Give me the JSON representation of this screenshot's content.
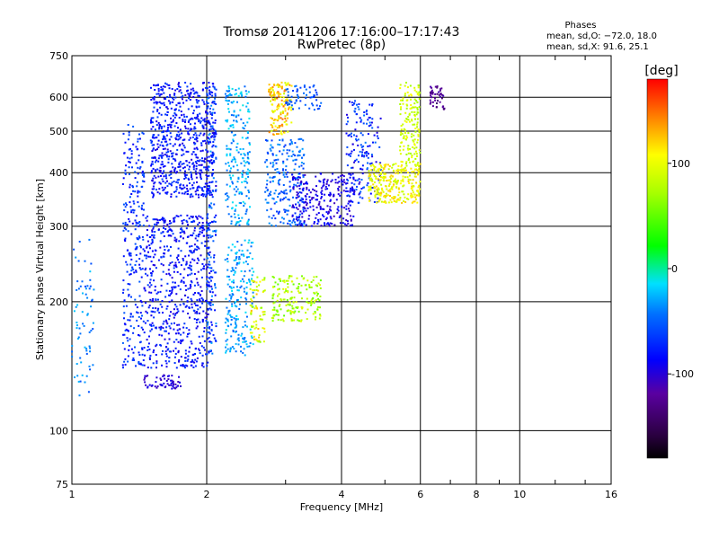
{
  "chart_data": {
    "type": "scatter",
    "title": "Tromsø 20141206 17:16:00–17:17:43",
    "subtitle": "RwPretec (8p)",
    "xlabel": "Frequency [MHz]",
    "ylabel": "Stationary phase Virtual Height [km]",
    "xscale": "log",
    "yscale": "log",
    "xlim": [
      1,
      16
    ],
    "ylim": [
      75,
      750
    ],
    "x_ticks": [
      1,
      2,
      4,
      6,
      8,
      10,
      16
    ],
    "y_ticks": [
      75,
      100,
      200,
      300,
      400,
      500,
      600,
      750
    ],
    "grid": true,
    "stats": {
      "heading": "Phases",
      "line1": "mean, sd,O: −72.0, 18.0",
      "line2": "mean, sd,X:  91.6, 25.1"
    },
    "colorbar": {
      "label": "[deg]",
      "range": [
        -180,
        180
      ],
      "ticks": [
        100,
        0,
        -100
      ],
      "colormap": "rainbow (black → purple → blue → cyan → green → yellow → orange → red)"
    },
    "clusters": [
      {
        "fmin": 1.0,
        "fmax": 1.12,
        "hmin": 120,
        "hmax": 280,
        "phase": [
          -60,
          -20
        ],
        "n": 70
      },
      {
        "fmin": 1.3,
        "fmax": 1.45,
        "hmin": 140,
        "hmax": 520,
        "phase": [
          -90,
          -50
        ],
        "n": 260
      },
      {
        "fmin": 1.45,
        "fmax": 2.05,
        "hmin": 140,
        "hmax": 320,
        "phase": [
          -100,
          -60
        ],
        "n": 650
      },
      {
        "fmin": 1.45,
        "fmax": 1.75,
        "hmin": 125,
        "hmax": 135,
        "phase": [
          -110,
          -90
        ],
        "n": 60
      },
      {
        "fmin": 1.5,
        "fmax": 2.1,
        "hmin": 350,
        "hmax": 650,
        "phase": [
          -100,
          -60
        ],
        "n": 700
      },
      {
        "fmin": 2.0,
        "fmax": 2.1,
        "hmin": 150,
        "hmax": 650,
        "phase": [
          -90,
          -30
        ],
        "n": 160
      },
      {
        "fmin": 2.2,
        "fmax": 2.5,
        "hmin": 300,
        "hmax": 640,
        "phase": [
          -50,
          -10
        ],
        "n": 220
      },
      {
        "fmin": 2.2,
        "fmax": 2.55,
        "hmin": 150,
        "hmax": 280,
        "phase": [
          -50,
          -10
        ],
        "n": 200
      },
      {
        "fmin": 2.5,
        "fmax": 2.7,
        "hmin": 160,
        "hmax": 230,
        "phase": [
          60,
          130
        ],
        "n": 70
      },
      {
        "fmin": 2.75,
        "fmax": 3.1,
        "hmin": 490,
        "hmax": 650,
        "phase": [
          80,
          150
        ],
        "n": 150
      },
      {
        "fmin": 2.7,
        "fmax": 3.3,
        "hmin": 300,
        "hmax": 480,
        "phase": [
          -70,
          -30
        ],
        "n": 220
      },
      {
        "fmin": 2.8,
        "fmax": 3.6,
        "hmin": 180,
        "hmax": 230,
        "phase": [
          50,
          100
        ],
        "n": 180
      },
      {
        "fmin": 3.0,
        "fmax": 3.6,
        "hmin": 560,
        "hmax": 640,
        "phase": [
          -70,
          -40
        ],
        "n": 60
      },
      {
        "fmin": 3.1,
        "fmax": 4.3,
        "hmin": 300,
        "hmax": 400,
        "phase": [
          -110,
          -80
        ],
        "n": 260
      },
      {
        "fmin": 4.1,
        "fmax": 4.9,
        "hmin": 340,
        "hmax": 590,
        "phase": [
          -100,
          -40
        ],
        "n": 170
      },
      {
        "fmin": 4.6,
        "fmax": 6.0,
        "hmin": 340,
        "hmax": 420,
        "phase": [
          80,
          125
        ],
        "n": 280
      },
      {
        "fmin": 5.4,
        "fmax": 6.0,
        "hmin": 420,
        "hmax": 650,
        "phase": [
          70,
          110
        ],
        "n": 150
      },
      {
        "fmin": 6.3,
        "fmax": 6.8,
        "hmin": 560,
        "hmax": 640,
        "phase": [
          -140,
          -110
        ],
        "n": 45
      }
    ]
  }
}
